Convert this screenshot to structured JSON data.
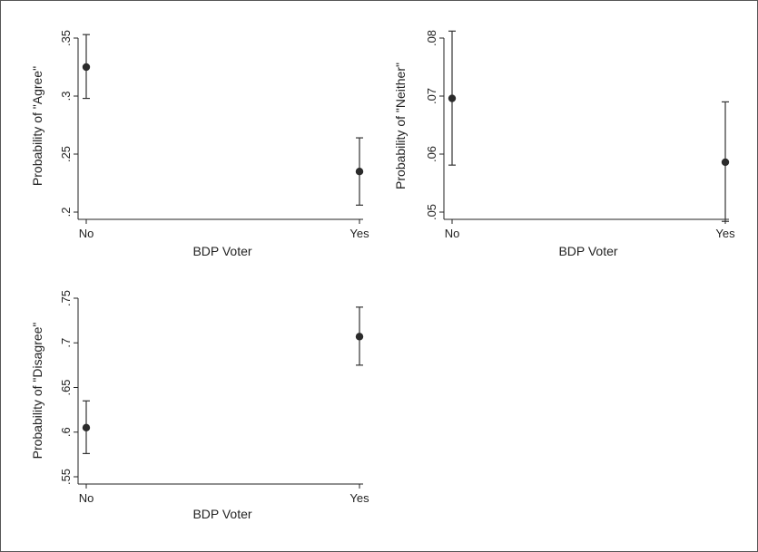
{
  "chart_data": [
    {
      "type": "scatter",
      "title": "",
      "xlabel": "BDP Voter",
      "ylabel": "Probability of \"Agree\"",
      "categories": [
        "No",
        "Yes"
      ],
      "values": [
        0.325,
        0.235
      ],
      "ci_lower": [
        0.298,
        0.206
      ],
      "ci_upper": [
        0.353,
        0.264
      ],
      "ylim": [
        0.2,
        0.35
      ],
      "yticks": [
        0.2,
        0.25,
        0.3,
        0.35
      ],
      "ytick_labels": [
        ".2",
        ".25",
        ".3",
        ".35"
      ],
      "grid": false
    },
    {
      "type": "scatter",
      "title": "",
      "xlabel": "BDP Voter",
      "ylabel": "Probability of \"Neither\"",
      "categories": [
        "No",
        "Yes"
      ],
      "values": [
        0.0696,
        0.0586
      ],
      "ci_lower": [
        0.0581,
        0.0484
      ],
      "ci_upper": [
        0.0812,
        0.069
      ],
      "ylim": [
        0.05,
        0.08
      ],
      "yticks": [
        0.05,
        0.06,
        0.07,
        0.08
      ],
      "ytick_labels": [
        ".05",
        ".06",
        ".07",
        ".08"
      ],
      "grid": false
    },
    {
      "type": "scatter",
      "title": "",
      "xlabel": "BDP Voter",
      "ylabel": "Probability of \"Disagree\"",
      "categories": [
        "No",
        "Yes"
      ],
      "values": [
        0.605,
        0.707
      ],
      "ci_lower": [
        0.576,
        0.675
      ],
      "ci_upper": [
        0.635,
        0.74
      ],
      "ylim": [
        0.55,
        0.75
      ],
      "yticks": [
        0.55,
        0.6,
        0.65,
        0.7,
        0.75
      ],
      "ytick_labels": [
        ".55",
        ".6",
        ".65",
        ".7",
        ".75"
      ],
      "grid": false
    }
  ]
}
